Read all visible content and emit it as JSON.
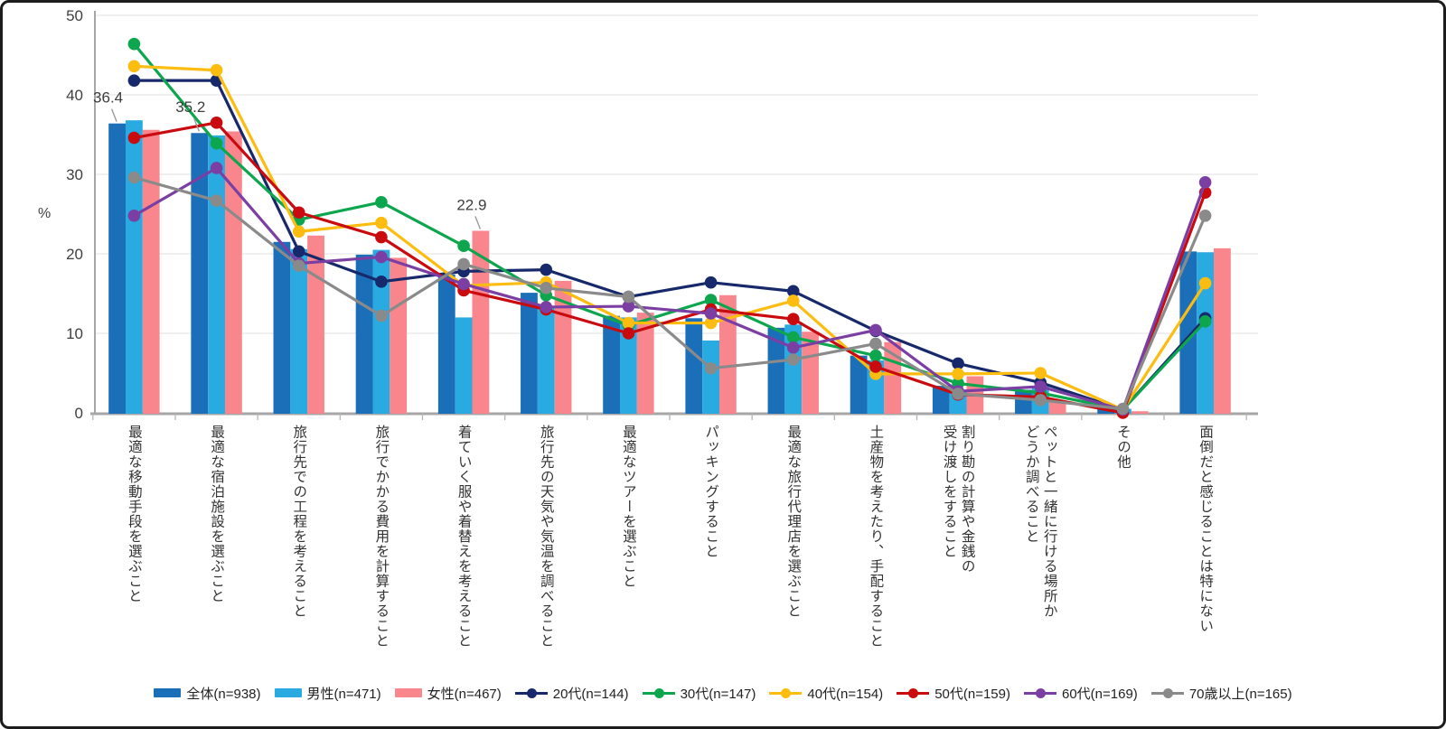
{
  "frame": {
    "background": "#ffffff",
    "border_color": "#1c1c1c"
  },
  "colors": {
    "gridline": "#e6e6e6",
    "axis_line": "#a6a6a6",
    "boundary_tick": "#b5b5b5",
    "leader_line": "#9a9a9a"
  },
  "chart_data": {
    "type": "bar",
    "subtype": "grouped bars (gender) combined with lines (age groups), survey percentages",
    "title": "",
    "xlabel": "",
    "ylabel": "%",
    "ylim": [
      0,
      50
    ],
    "yticks": [
      0,
      10,
      20,
      30,
      40,
      50
    ],
    "grid": true,
    "legend_position": "bottom",
    "categories": [
      "最適な移動手段を選ぶこと",
      "最適な宿泊施設を選ぶこと",
      "旅行先での工程を考えること",
      "旅行でかかる費用を計算すること",
      "着ていく服や着替えを考えること",
      "旅行先の天気や気温を調べること",
      "最適なツアーを選ぶこと",
      "パッキングすること",
      "最適な旅行代理店を選ぶこと",
      "土産物を考えたり、手配すること",
      "割り勘の計算や金銭の受け渡しをすること",
      "ペットと一緒に行ける場所かどうか調べること",
      "その他",
      "面倒だと感じることは特にない"
    ],
    "category_label_lines": [
      [
        "最適な移動手段を選ぶこと"
      ],
      [
        "最適な宿泊施設を選ぶこと"
      ],
      [
        "旅行先での工程を考えること"
      ],
      [
        "旅行でかかる費用を計算すること"
      ],
      [
        "着ていく服や着替えを考えること"
      ],
      [
        "旅行先の天気や気温を調べること"
      ],
      [
        "最適なツアーを選ぶこと"
      ],
      [
        "パッキングすること"
      ],
      [
        "最適な旅行代理店を選ぶこと"
      ],
      [
        "土産物を考えたり、手配すること"
      ],
      [
        "割り勘の計算や金銭の",
        "受け渡しをすること"
      ],
      [
        "ペットと一緒に行ける場所か",
        "どうか調べること"
      ],
      [
        "その他"
      ],
      [
        "面倒だと感じることは特にない"
      ]
    ],
    "bar_series": [
      {
        "name": "全体(n=938)",
        "color": "#1b6fb8",
        "values": [
          36.4,
          35.2,
          21.5,
          19.9,
          17.4,
          15.1,
          12.2,
          11.9,
          10.7,
          7.2,
          3.4,
          2.9,
          0.5,
          20.3
        ]
      },
      {
        "name": "男性(n=471)",
        "color": "#29aae1",
        "values": [
          36.8,
          34.9,
          20.6,
          20.5,
          12.0,
          13.2,
          12.0,
          9.1,
          11.1,
          6.6,
          2.6,
          3.3,
          0.5,
          20.2
        ]
      },
      {
        "name": "女性(n=467)",
        "color": "#f9868d",
        "values": [
          35.6,
          35.4,
          22.3,
          19.5,
          22.9,
          16.6,
          12.6,
          14.8,
          10.2,
          8.9,
          4.6,
          1.5,
          0.2,
          20.7
        ]
      }
    ],
    "line_series": [
      {
        "name": "20代(n=144)",
        "color": "#17296b",
        "values": [
          41.8,
          41.8,
          20.3,
          16.5,
          17.8,
          18.0,
          14.6,
          16.4,
          15.3,
          10.3,
          6.2,
          3.8,
          0.4,
          11.9
        ]
      },
      {
        "name": "30代(n=147)",
        "color": "#0da64f",
        "values": [
          46.4,
          33.9,
          24.3,
          26.5,
          21.0,
          14.8,
          11.0,
          14.2,
          9.5,
          7.2,
          3.7,
          2.5,
          0.4,
          11.5
        ]
      },
      {
        "name": "40代(n=154)",
        "color": "#fcbc10",
        "values": [
          43.6,
          43.1,
          22.8,
          23.9,
          16.0,
          16.4,
          11.3,
          11.3,
          14.1,
          4.9,
          4.9,
          5.0,
          0.4,
          16.3
        ]
      },
      {
        "name": "50代(n=159)",
        "color": "#c90b0f",
        "values": [
          34.6,
          36.5,
          25.2,
          22.1,
          15.4,
          13.0,
          10.0,
          13.0,
          11.8,
          5.8,
          2.3,
          2.0,
          0.0,
          27.7
        ]
      },
      {
        "name": "60代(n=169)",
        "color": "#7b3fa4",
        "values": [
          24.8,
          30.8,
          18.8,
          19.6,
          16.2,
          13.3,
          13.4,
          12.5,
          8.2,
          10.4,
          2.7,
          3.3,
          0.4,
          29.0
        ]
      },
      {
        "name": "70歳以上(n=165)",
        "color": "#8a8a8a",
        "values": [
          29.6,
          26.7,
          18.5,
          12.2,
          18.7,
          15.7,
          14.6,
          5.6,
          6.7,
          8.7,
          2.4,
          1.6,
          0.5,
          24.8
        ]
      }
    ],
    "annotations": [
      {
        "text": "36.4",
        "category_index": 0,
        "bar_series_index": 0
      },
      {
        "text": "35.2",
        "category_index": 1,
        "bar_series_index": 0
      },
      {
        "text": "22.9",
        "category_index": 4,
        "bar_series_index": 2
      }
    ]
  }
}
